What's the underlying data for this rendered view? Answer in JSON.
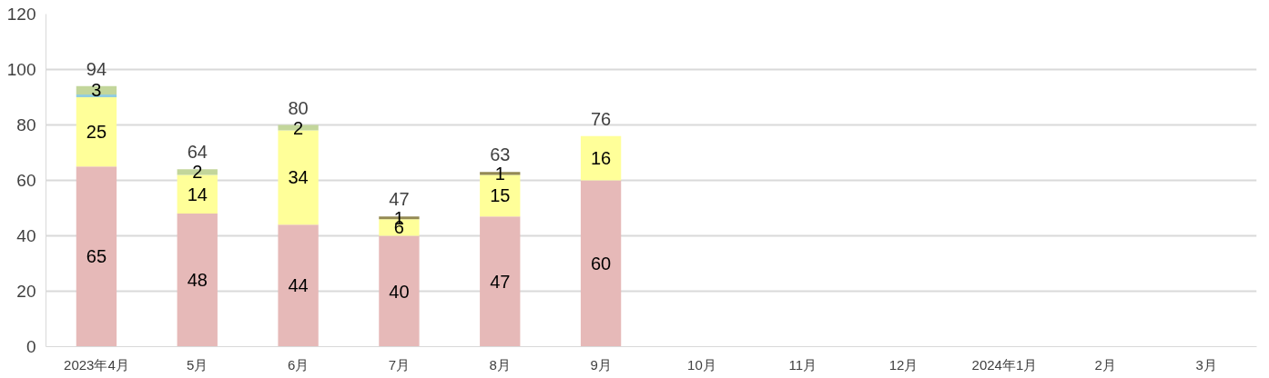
{
  "chart_data": {
    "type": "bar",
    "stacked": true,
    "categories": [
      "2023年4月",
      "5月",
      "6月",
      "7月",
      "8月",
      "9月",
      "10月",
      "11月",
      "12月",
      "2024年1月",
      "2月",
      "3月"
    ],
    "series": [
      {
        "color": "#e6b9b8",
        "values": [
          65,
          48,
          44,
          40,
          47,
          60,
          null,
          null,
          null,
          null,
          null,
          null
        ],
        "value_labels": [
          "65",
          "48",
          "44",
          "40",
          "47",
          "60",
          null,
          null,
          null,
          null,
          null,
          null
        ]
      },
      {
        "color": "#ffff99",
        "values": [
          25,
          14,
          34,
          6,
          15,
          16,
          null,
          null,
          null,
          null,
          null,
          null
        ],
        "value_labels": [
          "25",
          "14",
          "34",
          "6",
          "15",
          "16",
          null,
          null,
          null,
          null,
          null,
          null
        ]
      },
      {
        "color": "#93cddd",
        "values": [
          1,
          null,
          null,
          null,
          null,
          null,
          null,
          null,
          null,
          null,
          null,
          null
        ],
        "value_labels": [
          null,
          null,
          null,
          null,
          null,
          null,
          null,
          null,
          null,
          null,
          null,
          null
        ]
      },
      {
        "color": "#948a54",
        "values": [
          null,
          null,
          null,
          1,
          1,
          null,
          null,
          null,
          null,
          null,
          null,
          null
        ],
        "value_labels": [
          null,
          null,
          null,
          "1",
          "1",
          null,
          null,
          null,
          null,
          null,
          null,
          null
        ]
      },
      {
        "color": "#c3d69b",
        "values": [
          3,
          2,
          2,
          null,
          null,
          null,
          null,
          null,
          null,
          null,
          null,
          null
        ],
        "value_labels": [
          "3",
          "2",
          "2",
          null,
          null,
          null,
          null,
          null,
          null,
          null,
          null,
          null
        ]
      }
    ],
    "totals": [
      "94",
      "64",
      "80",
      "47",
      "63",
      "76",
      null,
      null,
      null,
      null,
      null,
      null
    ],
    "ylim": [
      0,
      120
    ],
    "yticks": [
      0,
      20,
      40,
      60,
      80,
      100,
      120
    ],
    "grid": "y"
  }
}
